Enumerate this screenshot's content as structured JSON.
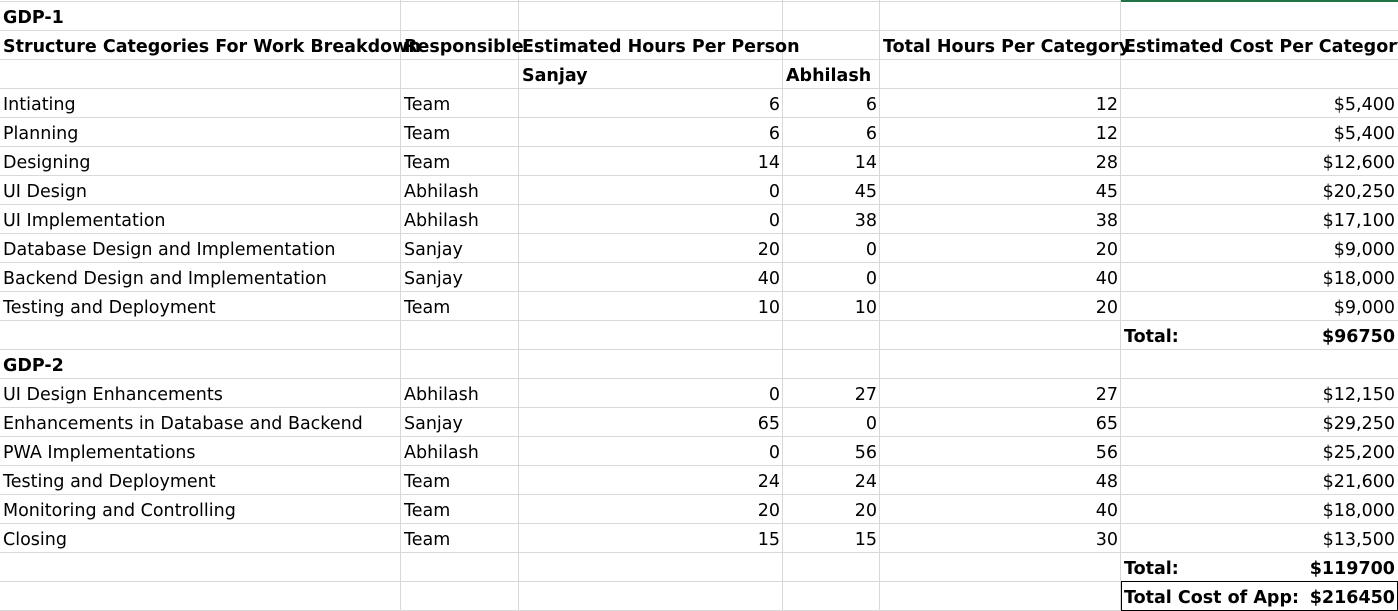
{
  "gdp1": {
    "title": "GDP-1",
    "headers": {
      "category": "Structure Categories For Work Breakdown",
      "responsible": "Responsible",
      "est_hours": "Estimated Hours Per Person",
      "total_hours": "Total Hours Per Category",
      "est_cost": "Estimated Cost Per Category"
    },
    "persons": [
      "Sanjay",
      "Abhilash"
    ],
    "rows": [
      {
        "category": "Intiating",
        "responsible": "Team",
        "sanjay": "6",
        "abhilash": "6",
        "total": "12",
        "cost": "$5,400"
      },
      {
        "category": "Planning",
        "responsible": "Team",
        "sanjay": "6",
        "abhilash": "6",
        "total": "12",
        "cost": "$5,400"
      },
      {
        "category": "Designing",
        "responsible": "Team",
        "sanjay": "14",
        "abhilash": "14",
        "total": "28",
        "cost": "$12,600"
      },
      {
        "category": "UI Design",
        "responsible": "Abhilash",
        "sanjay": "0",
        "abhilash": "45",
        "total": "45",
        "cost": "$20,250"
      },
      {
        "category": "UI Implementation",
        "responsible": "Abhilash",
        "sanjay": "0",
        "abhilash": "38",
        "total": "38",
        "cost": "$17,100"
      },
      {
        "category": "Database Design and Implementation",
        "responsible": "Sanjay",
        "sanjay": "20",
        "abhilash": "0",
        "total": "20",
        "cost": "$9,000"
      },
      {
        "category": "Backend Design and Implementation",
        "responsible": "Sanjay",
        "sanjay": "40",
        "abhilash": "0",
        "total": "40",
        "cost": "$18,000"
      },
      {
        "category": "Testing and Deployment",
        "responsible": "Team",
        "sanjay": "10",
        "abhilash": "10",
        "total": "20",
        "cost": "$9,000"
      }
    ],
    "total_label": "Total:",
    "total_value": "$96750"
  },
  "gdp2": {
    "title": "GDP-2",
    "rows": [
      {
        "category": "UI Design Enhancements",
        "responsible": "Abhilash",
        "sanjay": "0",
        "abhilash": "27",
        "total": "27",
        "cost": "$12,150"
      },
      {
        "category": "Enhancements in Database and Backend",
        "responsible": "Sanjay",
        "sanjay": "65",
        "abhilash": "0",
        "total": "65",
        "cost": "$29,250"
      },
      {
        "category": "PWA Implementations",
        "responsible": "Abhilash",
        "sanjay": "0",
        "abhilash": "56",
        "total": "56",
        "cost": "$25,200"
      },
      {
        "category": "Testing and Deployment",
        "responsible": "Team",
        "sanjay": "24",
        "abhilash": "24",
        "total": "48",
        "cost": "$21,600"
      },
      {
        "category": "Monitoring and Controlling",
        "responsible": "Team",
        "sanjay": "20",
        "abhilash": "20",
        "total": "40",
        "cost": "$18,000"
      },
      {
        "category": "Closing",
        "responsible": "Team",
        "sanjay": "15",
        "abhilash": "15",
        "total": "30",
        "cost": "$13,500"
      }
    ],
    "total_label": "Total:",
    "total_value": "$119700"
  },
  "app_total_label": "Total Cost of App:",
  "app_total_value": "$216450"
}
